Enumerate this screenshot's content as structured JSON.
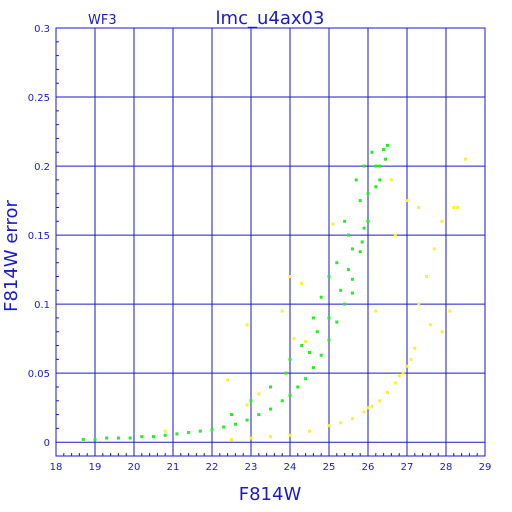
{
  "chart_data": {
    "type": "scatter",
    "title": "lmc_u4ax03",
    "subtitle": "WF3",
    "xlabel": "F814W",
    "ylabel": "F814W error",
    "xlim": [
      18,
      29
    ],
    "ylim": [
      -0.01,
      0.3
    ],
    "x_ticks": [
      "18",
      "19",
      "20",
      "21",
      "22",
      "23",
      "24",
      "25",
      "26",
      "27",
      "28",
      "29"
    ],
    "y_ticks": [
      "0",
      "0.05",
      "0.1",
      "0.15",
      "0.2",
      "0.25",
      "0.3"
    ],
    "grid": true,
    "colors": {
      "axis": "#1a1acc",
      "grid": "#1a1acc",
      "green": "#22ee22",
      "yellow": "#ffee33"
    },
    "series": [
      {
        "color": "green",
        "points": [
          [
            18.7,
            0.002
          ],
          [
            19.0,
            0.002
          ],
          [
            19.3,
            0.003
          ],
          [
            19.6,
            0.003
          ],
          [
            19.9,
            0.003
          ],
          [
            20.2,
            0.004
          ],
          [
            20.5,
            0.004
          ],
          [
            20.8,
            0.005
          ],
          [
            21.1,
            0.006
          ],
          [
            21.4,
            0.007
          ],
          [
            21.7,
            0.008
          ],
          [
            22.0,
            0.009
          ],
          [
            22.3,
            0.011
          ],
          [
            22.6,
            0.013
          ],
          [
            22.9,
            0.016
          ],
          [
            23.2,
            0.02
          ],
          [
            23.5,
            0.024
          ],
          [
            23.8,
            0.03
          ],
          [
            24.0,
            0.034
          ],
          [
            24.2,
            0.04
          ],
          [
            24.4,
            0.046
          ],
          [
            24.6,
            0.054
          ],
          [
            24.8,
            0.063
          ],
          [
            25.0,
            0.074
          ],
          [
            25.2,
            0.087
          ],
          [
            25.4,
            0.1
          ],
          [
            25.6,
            0.118
          ],
          [
            25.8,
            0.138
          ],
          [
            26.0,
            0.16
          ],
          [
            26.2,
            0.185
          ],
          [
            26.4,
            0.212
          ],
          [
            26.5,
            0.215
          ],
          [
            25.9,
            0.2
          ],
          [
            25.7,
            0.19
          ],
          [
            25.4,
            0.16
          ],
          [
            25.0,
            0.12
          ],
          [
            24.6,
            0.09
          ],
          [
            24.8,
            0.105
          ],
          [
            25.2,
            0.13
          ],
          [
            25.5,
            0.15
          ],
          [
            25.8,
            0.175
          ],
          [
            26.1,
            0.21
          ],
          [
            24.3,
            0.07
          ],
          [
            23.9,
            0.05
          ],
          [
            23.5,
            0.04
          ],
          [
            23.0,
            0.03
          ],
          [
            22.5,
            0.02
          ],
          [
            24.7,
            0.08
          ],
          [
            25.3,
            0.11
          ],
          [
            25.6,
            0.14
          ],
          [
            26.0,
            0.18
          ],
          [
            26.3,
            0.2
          ],
          [
            24.0,
            0.06
          ],
          [
            24.5,
            0.065
          ],
          [
            25.0,
            0.09
          ],
          [
            25.5,
            0.125
          ],
          [
            25.9,
            0.155
          ],
          [
            26.3,
            0.19
          ],
          [
            26.45,
            0.205
          ],
          [
            26.2,
            0.2
          ],
          [
            25.85,
            0.145
          ],
          [
            25.6,
            0.108
          ]
        ]
      },
      {
        "color": "yellow",
        "points": [
          [
            20.8,
            0.008
          ],
          [
            22.5,
            0.002
          ],
          [
            23.0,
            0.003
          ],
          [
            23.5,
            0.004
          ],
          [
            24.0,
            0.005
          ],
          [
            24.5,
            0.008
          ],
          [
            25.0,
            0.012
          ],
          [
            25.3,
            0.014
          ],
          [
            25.6,
            0.017
          ],
          [
            25.9,
            0.022
          ],
          [
            26.1,
            0.026
          ],
          [
            26.3,
            0.03
          ],
          [
            26.5,
            0.036
          ],
          [
            26.7,
            0.043
          ],
          [
            26.9,
            0.05
          ],
          [
            27.0,
            0.055
          ],
          [
            27.1,
            0.06
          ],
          [
            27.2,
            0.068
          ],
          [
            26.8,
            0.048
          ],
          [
            26.0,
            0.025
          ],
          [
            27.5,
            0.12
          ],
          [
            27.7,
            0.14
          ],
          [
            27.9,
            0.16
          ],
          [
            28.2,
            0.17
          ],
          [
            28.5,
            0.205
          ],
          [
            27.3,
            0.17
          ],
          [
            26.6,
            0.19
          ],
          [
            24.3,
            0.115
          ],
          [
            24.0,
            0.12
          ],
          [
            23.8,
            0.095
          ],
          [
            22.9,
            0.085
          ],
          [
            22.4,
            0.045
          ],
          [
            23.2,
            0.035
          ],
          [
            24.1,
            0.075
          ],
          [
            25.1,
            0.158
          ],
          [
            26.2,
            0.095
          ],
          [
            26.7,
            0.15
          ],
          [
            27.0,
            0.175
          ],
          [
            27.3,
            0.1
          ],
          [
            27.6,
            0.085
          ],
          [
            28.1,
            0.095
          ],
          [
            28.3,
            0.17
          ],
          [
            27.9,
            0.08
          ],
          [
            22.9,
            0.027
          ],
          [
            24.4,
            0.073
          ]
        ]
      }
    ]
  }
}
